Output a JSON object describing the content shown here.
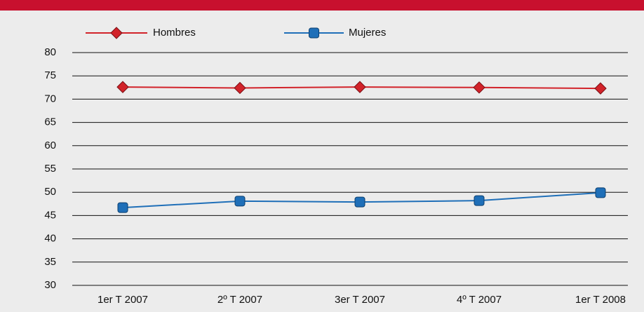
{
  "chart_data": {
    "type": "line",
    "categories": [
      "1er T 2007",
      "2º T 2007",
      "3er T 2007",
      "4º T 2007",
      "1er T 2008"
    ],
    "series": [
      {
        "name": "Hombres",
        "color": "#d2232a",
        "marker": "diamond",
        "values": [
          72.6,
          72.4,
          72.6,
          72.5,
          72.3
        ]
      },
      {
        "name": "Mujeres",
        "color": "#1f6fb8",
        "marker": "square",
        "values": [
          46.7,
          48.1,
          47.9,
          48.2,
          49.9
        ]
      }
    ],
    "ylim": [
      30,
      80
    ],
    "yticks": [
      30,
      35,
      40,
      45,
      50,
      55,
      60,
      65,
      70,
      75,
      80
    ],
    "grid": true
  }
}
